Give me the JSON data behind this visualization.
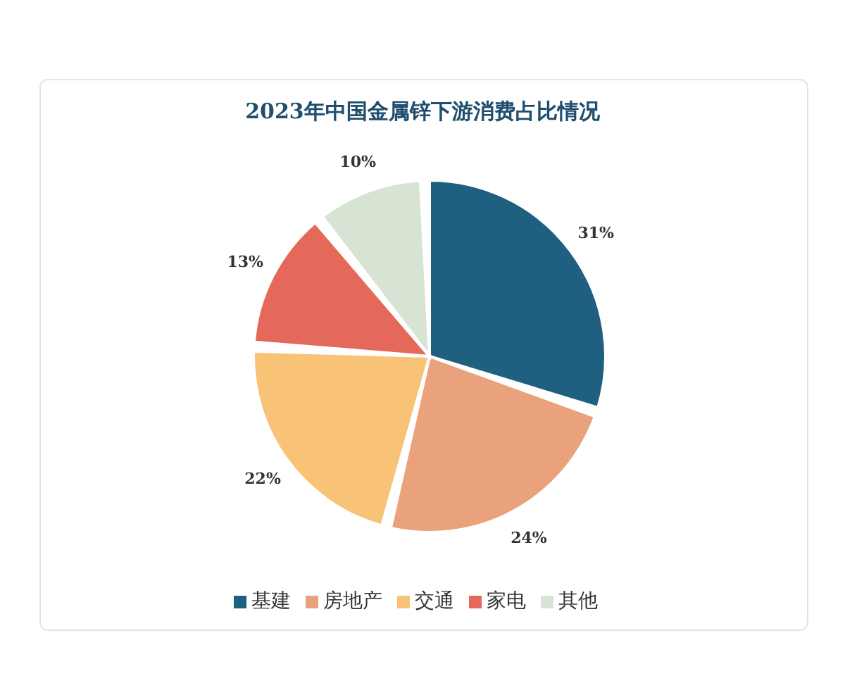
{
  "chart_data": {
    "type": "pie",
    "title": "2023年中国金属锌下游消费占比情况",
    "categories": [
      "基建",
      "房地产",
      "交通",
      "家电",
      "其他"
    ],
    "values": [
      31,
      24,
      22,
      13,
      10
    ],
    "value_labels": [
      "31%",
      "24%",
      "22%",
      "13%",
      "10%"
    ],
    "colors": [
      "#1f5f80",
      "#e9a27c",
      "#f9c377",
      "#e5695b",
      "#d7e4d3"
    ],
    "legend": "bottom"
  }
}
